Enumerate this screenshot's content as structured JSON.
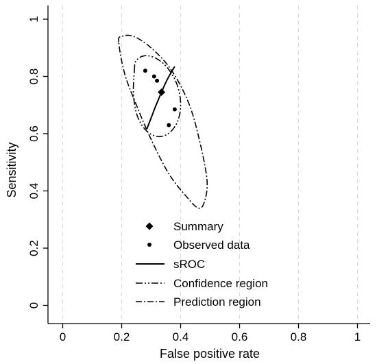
{
  "chart_data": {
    "type": "scatter",
    "xlabel": "False positive rate",
    "ylabel": "Sensitivity",
    "xlim": [
      -0.02,
      1.05
    ],
    "ylim": [
      -0.02,
      1.04
    ],
    "x_ticks": [
      0,
      0.2,
      0.4,
      0.6,
      0.8,
      1
    ],
    "x_tick_labels": [
      "0",
      "0.2",
      "0.4",
      "0.6",
      "0.8",
      "1"
    ],
    "y_ticks": [
      0,
      0.2,
      0.4,
      0.6,
      0.8,
      1
    ],
    "y_tick_labels": [
      "0",
      "0.2",
      "0.4",
      "0.6",
      "0.8",
      "1"
    ],
    "grid": "vertical dashed",
    "legend_position": "inside bottom-center",
    "summary": {
      "x": 0.335,
      "y": 0.745
    },
    "observed": [
      {
        "x": 0.28,
        "y": 0.82
      },
      {
        "x": 0.31,
        "y": 0.8
      },
      {
        "x": 0.32,
        "y": 0.785
      },
      {
        "x": 0.38,
        "y": 0.685
      },
      {
        "x": 0.36,
        "y": 0.63
      }
    ],
    "sroc": [
      {
        "x": 0.285,
        "y": 0.615
      },
      {
        "x": 0.3,
        "y": 0.655
      },
      {
        "x": 0.315,
        "y": 0.695
      },
      {
        "x": 0.335,
        "y": 0.745
      },
      {
        "x": 0.355,
        "y": 0.79
      },
      {
        "x": 0.38,
        "y": 0.835
      }
    ],
    "confidence_region": [
      {
        "x": 0.243,
        "y": 0.818
      },
      {
        "x": 0.248,
        "y": 0.853
      },
      {
        "x": 0.276,
        "y": 0.872
      },
      {
        "x": 0.317,
        "y": 0.863
      },
      {
        "x": 0.356,
        "y": 0.829
      },
      {
        "x": 0.387,
        "y": 0.774
      },
      {
        "x": 0.4,
        "y": 0.708
      },
      {
        "x": 0.391,
        "y": 0.646
      },
      {
        "x": 0.362,
        "y": 0.603
      },
      {
        "x": 0.323,
        "y": 0.59
      },
      {
        "x": 0.282,
        "y": 0.612
      },
      {
        "x": 0.252,
        "y": 0.665
      },
      {
        "x": 0.24,
        "y": 0.739
      }
    ],
    "prediction_region": [
      {
        "x": 0.19,
        "y": 0.92
      },
      {
        "x": 0.2,
        "y": 0.94
      },
      {
        "x": 0.24,
        "y": 0.94
      },
      {
        "x": 0.3,
        "y": 0.9
      },
      {
        "x": 0.37,
        "y": 0.82
      },
      {
        "x": 0.43,
        "y": 0.7
      },
      {
        "x": 0.47,
        "y": 0.55
      },
      {
        "x": 0.49,
        "y": 0.43
      },
      {
        "x": 0.48,
        "y": 0.36
      },
      {
        "x": 0.46,
        "y": 0.34
      },
      {
        "x": 0.42,
        "y": 0.38
      },
      {
        "x": 0.36,
        "y": 0.46
      },
      {
        "x": 0.3,
        "y": 0.58
      },
      {
        "x": 0.25,
        "y": 0.7
      },
      {
        "x": 0.21,
        "y": 0.81
      }
    ],
    "legend": [
      {
        "key": "summary",
        "label": "Summary",
        "marker": "diamond"
      },
      {
        "key": "observed",
        "label": "Observed data",
        "marker": "dot"
      },
      {
        "key": "sroc",
        "label": "sROC",
        "line": "solid"
      },
      {
        "key": "confidence_region",
        "label": "Confidence region",
        "line": "dash-dot"
      },
      {
        "key": "prediction_region",
        "label": "Prediction region",
        "line": "dash-dot"
      }
    ],
    "colors": {
      "ink": "#000000",
      "grid": "#d9d9d9",
      "background": "#ffffff"
    }
  }
}
